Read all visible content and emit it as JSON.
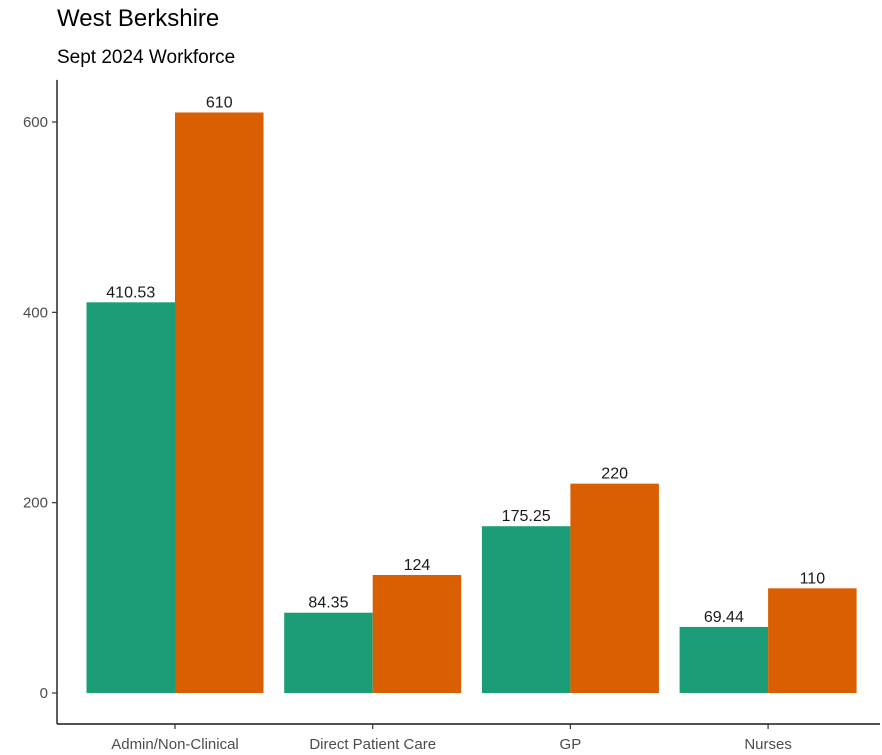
{
  "chart_data": {
    "type": "bar",
    "title": "West Berkshire",
    "subtitle": "Sept 2024 Workforce",
    "xlabel": "",
    "ylabel": "",
    "categories": [
      "Admin/Non-Clinical",
      "Direct Patient Care",
      "GP",
      "Nurses"
    ],
    "series": [
      {
        "values": [
          410.53,
          84.35,
          175.25,
          69.44
        ],
        "labels": [
          "410.53",
          "84.35",
          "175.25",
          "69.44"
        ],
        "color": "#1b9e77"
      },
      {
        "values": [
          610,
          124,
          220,
          110
        ],
        "labels": [
          "610",
          "124",
          "220",
          "110"
        ],
        "color": "#d95f02"
      }
    ],
    "yticks": [
      0,
      200,
      400,
      600
    ],
    "ylim": [
      0,
      640
    ],
    "grid": false,
    "legend": "none"
  }
}
